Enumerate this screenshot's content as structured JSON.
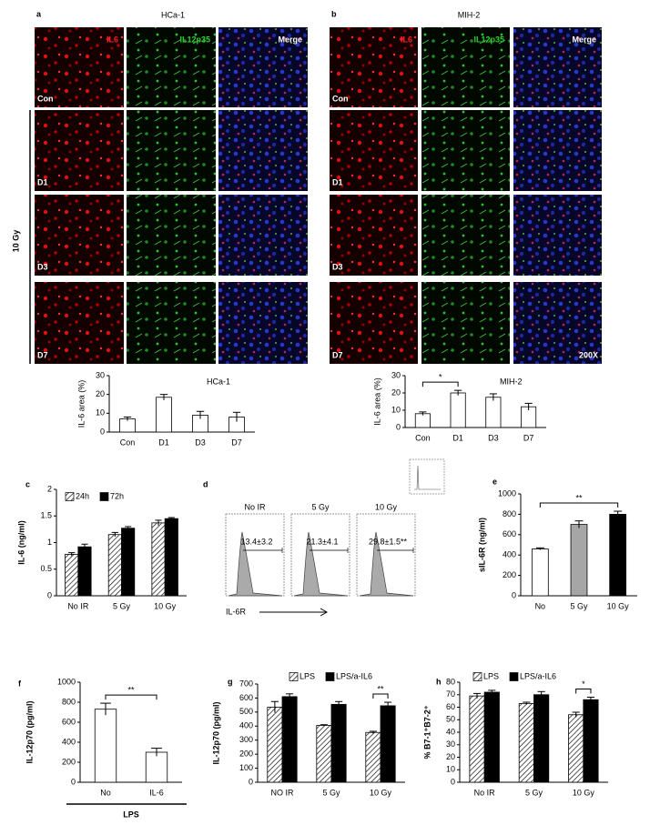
{
  "panel_a": {
    "label": "a",
    "title": "HCa-1",
    "columns": [
      "IL6",
      "IL12p35",
      "Merge"
    ],
    "rows": [
      "Con",
      "D1",
      "D3",
      "D7"
    ],
    "group_label": "10 Gy"
  },
  "panel_b": {
    "label": "b",
    "title": "MIH-2",
    "columns": [
      "IL6",
      "IL12p35",
      "Merge"
    ],
    "rows": [
      "Con",
      "D1",
      "D3",
      "D7"
    ],
    "magnification": "200X"
  },
  "panel_d": {
    "label": "d",
    "x_label": "IL-6R",
    "histograms": [
      {
        "title": "No IR",
        "value": "13.4±3.2"
      },
      {
        "title": "5 Gy",
        "value": "21.3±4.1"
      },
      {
        "title": "10 Gy",
        "value": "29.8±1.5**"
      }
    ]
  },
  "chart_data": [
    {
      "type": "bar",
      "title": "HCa-1",
      "y_label": "IL-6 area (%)",
      "categories": [
        "Con",
        "D1",
        "D3",
        "D7"
      ],
      "values": [
        7,
        18.5,
        9,
        8
      ],
      "errors": [
        1,
        1.5,
        2,
        2.5
      ],
      "color": "#ffffff",
      "ylim": [
        0,
        30
      ],
      "yticks": [
        0,
        10,
        20,
        30
      ]
    },
    {
      "type": "bar",
      "title": "MIH-2",
      "y_label": "IL-6 area (%)",
      "categories": [
        "Con",
        "D1",
        "D3",
        "D7"
      ],
      "values": [
        8,
        20,
        17.5,
        12
      ],
      "errors": [
        1,
        1.5,
        2,
        2
      ],
      "color": "#ffffff",
      "ylim": [
        0,
        30
      ],
      "yticks": [
        0,
        10,
        20,
        30
      ],
      "annotation": "*"
    },
    {
      "type": "grouped_bar",
      "label": "c",
      "y_label": "IL-6 (ng/ml)",
      "categories": [
        "No IR",
        "5 Gy",
        "10 Gy"
      ],
      "series": [
        {
          "name": "24h",
          "pattern": "hatch",
          "values": [
            0.78,
            1.15,
            1.37
          ],
          "errors": [
            0.03,
            0.04,
            0.05
          ]
        },
        {
          "name": "72h",
          "color": "#000000",
          "values": [
            0.92,
            1.27,
            1.45
          ],
          "errors": [
            0.05,
            0.03,
            0.02
          ]
        }
      ],
      "ylim": [
        0,
        2
      ],
      "yticks": [
        0,
        0.5,
        1,
        1.5,
        2
      ]
    },
    {
      "type": "bar",
      "label": "e",
      "y_label": "sIL-6R (ng/ml)",
      "categories": [
        "No",
        "5 Gy",
        "10 Gy"
      ],
      "values": [
        460,
        700,
        800
      ],
      "errors": [
        10,
        35,
        30
      ],
      "colors": [
        "#ffffff",
        "#a6a6a6",
        "#000000"
      ],
      "ylim": [
        0,
        1000
      ],
      "yticks": [
        0,
        200,
        400,
        600,
        800,
        1000
      ],
      "annotation": "**"
    },
    {
      "type": "bar",
      "label": "f",
      "y_label": "IL-12p70 (pg/ml)",
      "categories": [
        "No",
        "IL-6"
      ],
      "values": [
        730,
        300
      ],
      "errors": [
        60,
        40
      ],
      "color": "#ffffff",
      "x_group_label": "LPS",
      "ylim": [
        0,
        1000
      ],
      "yticks": [
        0,
        200,
        400,
        600,
        800,
        1000
      ],
      "annotation": "**"
    },
    {
      "type": "grouped_bar",
      "label": "g",
      "y_label": "IL-12p70 (pg/ml)",
      "categories": [
        "NO IR",
        "5 Gy",
        "10 Gy"
      ],
      "series": [
        {
          "name": "LPS",
          "pattern": "hatch",
          "values": [
            535,
            405,
            355
          ],
          "errors": [
            40,
            5,
            8
          ]
        },
        {
          "name": "LPS/a-IL6",
          "color": "#000000",
          "values": [
            610,
            555,
            545
          ],
          "errors": [
            20,
            20,
            25
          ]
        }
      ],
      "ylim": [
        0,
        700
      ],
      "yticks": [
        0,
        100,
        200,
        300,
        400,
        500,
        600,
        700
      ],
      "annotation": "**"
    },
    {
      "type": "grouped_bar",
      "label": "h",
      "y_label": "% B7-1⁺B7-2⁺",
      "categories": [
        "No IR",
        "5 Gy",
        "10 Gy"
      ],
      "series": [
        {
          "name": "LPS",
          "pattern": "hatch",
          "values": [
            69,
            63,
            54
          ],
          "errors": [
            2,
            1,
            2
          ]
        },
        {
          "name": "LPS/a-IL6",
          "color": "#000000",
          "values": [
            72,
            70,
            66
          ],
          "errors": [
            1.5,
            2.5,
            2
          ]
        }
      ],
      "ylim": [
        0,
        80
      ],
      "yticks": [
        0,
        10,
        20,
        30,
        40,
        50,
        60,
        70,
        80
      ],
      "annotation": "*"
    }
  ]
}
